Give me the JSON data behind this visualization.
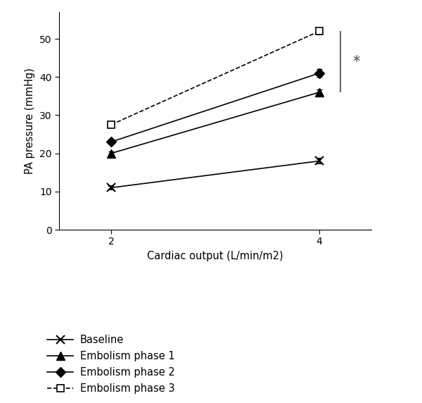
{
  "x_values": [
    2,
    4
  ],
  "x_ticks": [
    2,
    4
  ],
  "xlabel": "Cardiac output (L/min/m2)",
  "ylabel": "PA pressure (mmHg)",
  "ylim": [
    0,
    57
  ],
  "yticks": [
    0,
    10,
    20,
    30,
    40,
    50
  ],
  "xlim": [
    1.5,
    4.5
  ],
  "series": [
    {
      "label": "Baseline",
      "y": [
        11,
        18
      ],
      "yerr": [
        0.5,
        0.7
      ],
      "color": "#000000",
      "linestyle": "-",
      "marker": "x",
      "markersize": 8,
      "linewidth": 1.2,
      "markerfacecolor": "none",
      "markeredgewidth": 1.5
    },
    {
      "label": "Embolism phase 1",
      "y": [
        20,
        36
      ],
      "yerr": [
        0.5,
        0.8
      ],
      "color": "#000000",
      "linestyle": "-",
      "marker": "^",
      "markersize": 8,
      "linewidth": 1.2,
      "markerfacecolor": "#000000",
      "markeredgewidth": 1.0
    },
    {
      "label": "Embolism phase 2",
      "y": [
        23,
        41
      ],
      "yerr": [
        0.5,
        1.0
      ],
      "color": "#000000",
      "linestyle": "-",
      "marker": "D",
      "markersize": 7,
      "linewidth": 1.2,
      "markerfacecolor": "#000000",
      "markeredgewidth": 1.0
    },
    {
      "label": "Embolism phase 3",
      "y": [
        27.5,
        52
      ],
      "yerr": [
        0.6,
        0.8
      ],
      "color": "#000000",
      "linestyle": "--",
      "marker": "s",
      "markersize": 7,
      "linewidth": 1.2,
      "markerfacecolor": "#ffffff",
      "markeredgewidth": 1.2
    }
  ],
  "significance_line_x": 4.2,
  "significance_line_y1": 36,
  "significance_line_y2": 52,
  "significance_star_x": 4.32,
  "significance_star_y": 44,
  "background_color": "#ffffff"
}
